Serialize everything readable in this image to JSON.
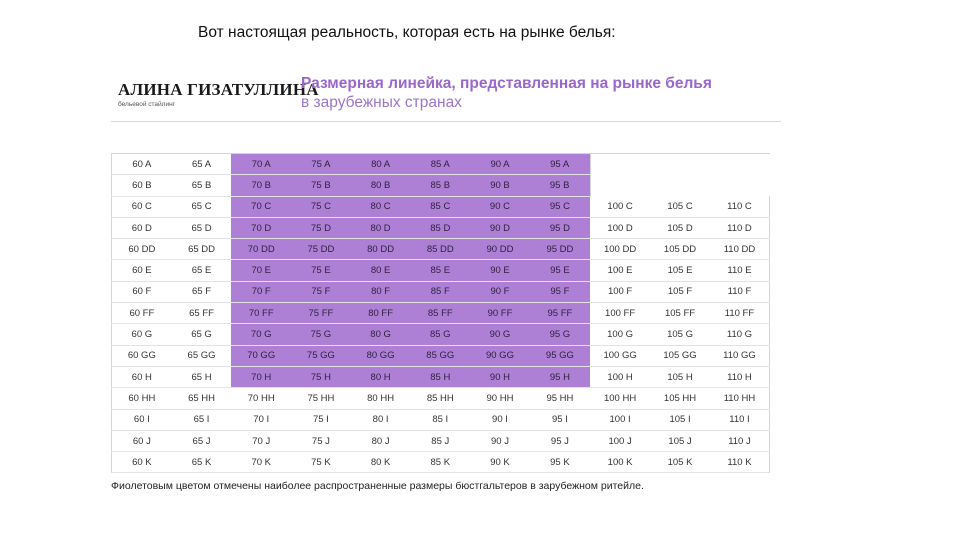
{
  "slide_caption": "Вот настоящая реальность, которая есть на рынке белья:",
  "brand": {
    "name": "АЛИНА ГИЗАТУЛЛИНА",
    "tagline": "бельевой стайлинг"
  },
  "headline": {
    "line1": "Размерная линейка, представленная на рынке белья",
    "line2": "в зарубежных странах"
  },
  "colors": {
    "highlight": "#ad80d6",
    "headline_accent": "#9966cc"
  },
  "highlight_rule": "Columns 70–95 for cups A to H are shaded violet",
  "size_table": {
    "rows": [
      [
        "60 A",
        "65 A",
        "70 A",
        "75 A",
        "80 A",
        "85 A",
        "90 A",
        "95 A",
        "",
        "",
        ""
      ],
      [
        "60 B",
        "65 B",
        "70 B",
        "75 B",
        "80 B",
        "85 B",
        "90 B",
        "95 B",
        "",
        "",
        ""
      ],
      [
        "60 C",
        "65 C",
        "70 C",
        "75 C",
        "80 C",
        "85 C",
        "90 C",
        "95 C",
        "100 C",
        "105 C",
        "110 C"
      ],
      [
        "60 D",
        "65 D",
        "70 D",
        "75 D",
        "80 D",
        "85 D",
        "90 D",
        "95 D",
        "100 D",
        "105 D",
        "110 D"
      ],
      [
        "60 DD",
        "65 DD",
        "70 DD",
        "75 DD",
        "80 DD",
        "85 DD",
        "90 DD",
        "95 DD",
        "100 DD",
        "105 DD",
        "110 DD"
      ],
      [
        "60 E",
        "65 E",
        "70 E",
        "75 E",
        "80 E",
        "85 E",
        "90 E",
        "95 E",
        "100 E",
        "105 E",
        "110 E"
      ],
      [
        "60 F",
        "65 F",
        "70 F",
        "75 F",
        "80 F",
        "85 F",
        "90 F",
        "95 F",
        "100 F",
        "105 F",
        "110 F"
      ],
      [
        "60 FF",
        "65 FF",
        "70 FF",
        "75 FF",
        "80 FF",
        "85 FF",
        "90 FF",
        "95 FF",
        "100 FF",
        "105 FF",
        "110 FF"
      ],
      [
        "60 G",
        "65 G",
        "70 G",
        "75 G",
        "80 G",
        "85 G",
        "90 G",
        "95 G",
        "100 G",
        "105 G",
        "110 G"
      ],
      [
        "60 GG",
        "65 GG",
        "70 GG",
        "75 GG",
        "80 GG",
        "85 GG",
        "90 GG",
        "95 GG",
        "100 GG",
        "105 GG",
        "110 GG"
      ],
      [
        "60 H",
        "65 H",
        "70 H",
        "75 H",
        "80 H",
        "85 H",
        "90 H",
        "95 H",
        "100 H",
        "105 H",
        "110 H"
      ],
      [
        "60 HH",
        "65 HH",
        "70 HH",
        "75 HH",
        "80 HH",
        "85 HH",
        "90 HH",
        "95 HH",
        "100 HH",
        "105 HH",
        "110 HH"
      ],
      [
        "60 I",
        "65 I",
        "70 I",
        "75 I",
        "80 I",
        "85 I",
        "90 I",
        "95 I",
        "100 I",
        "105 I",
        "110 I"
      ],
      [
        "60 J",
        "65 J",
        "70 J",
        "75 J",
        "80 J",
        "85 J",
        "90 J",
        "95 J",
        "100 J",
        "105 J",
        "110 J"
      ],
      [
        "60 K",
        "65 K",
        "70 K",
        "75 K",
        "80 K",
        "85 K",
        "90 K",
        "95 K",
        "100 K",
        "105 K",
        "110 K"
      ]
    ],
    "highlight": {
      "first_col": 2,
      "last_col": 7,
      "first_row": 0,
      "last_row": 10
    }
  },
  "footnote": "Фиолетовым цветом отмечены наиболее распространенные размеры бюстгальтеров в зарубежном ритейле."
}
